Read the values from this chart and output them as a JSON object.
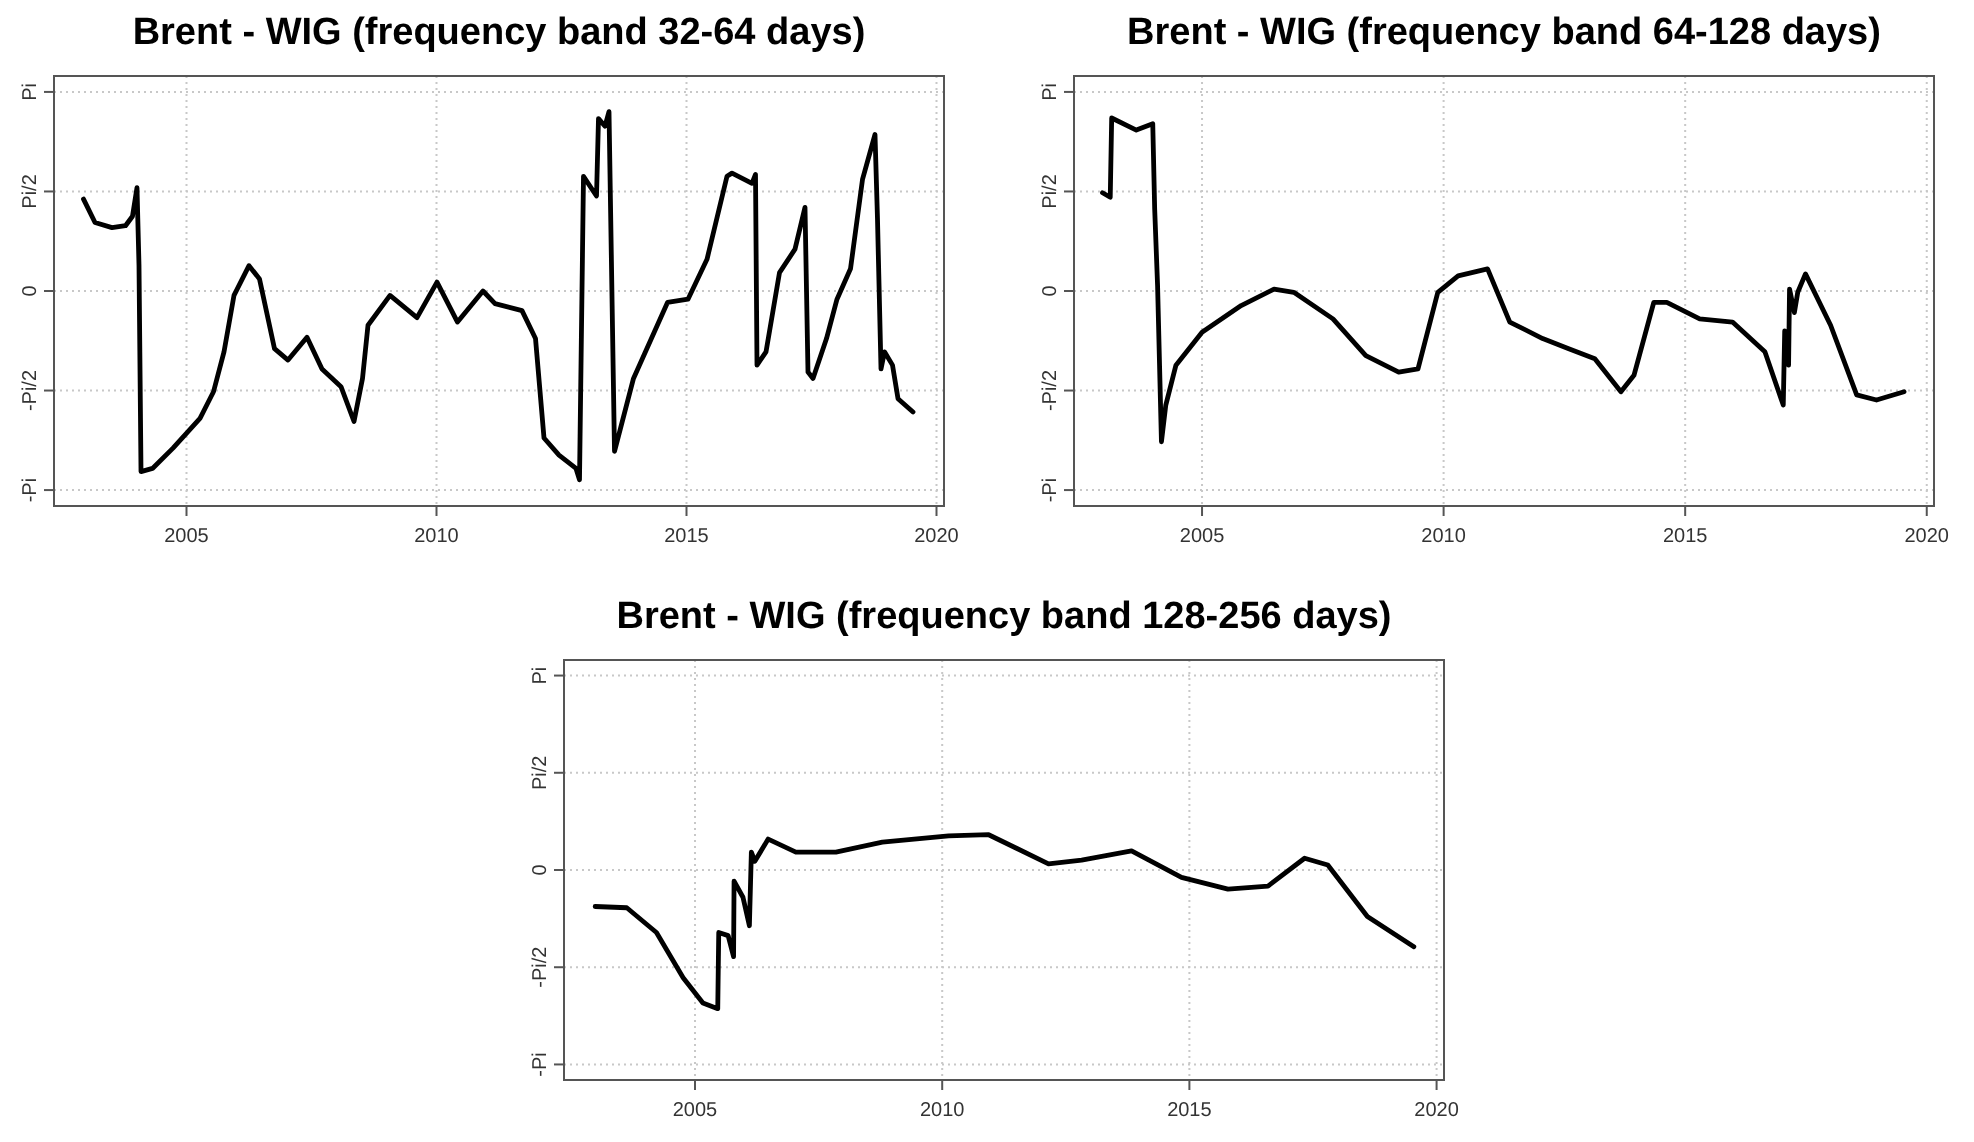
{
  "chart_data": [
    {
      "type": "line",
      "title": "Brent - WIG (frequency band 32-64 days)",
      "xlim": [
        2002.35,
        2020.15
      ],
      "xticks": [
        2005,
        2010,
        2015,
        2020
      ],
      "ylim": [
        -3.393,
        3.393
      ],
      "yticks": [
        {
          "value": -3.1416,
          "label": "-Pi"
        },
        {
          "value": -1.5708,
          "label": "-Pi/2"
        },
        {
          "value": 0,
          "label": "0"
        },
        {
          "value": 1.5708,
          "label": "Pi/2"
        },
        {
          "value": 3.1416,
          "label": "Pi"
        }
      ],
      "grid": true,
      "line_style": "solid",
      "marker": "none",
      "series": [
        {
          "color": "#000000",
          "x": [
            2002.94,
            2003.17,
            2003.51,
            2003.78,
            2003.92,
            2004.01,
            2004.05,
            2004.09,
            2004.32,
            2004.73,
            2005.27,
            2005.54,
            2005.75,
            2005.95,
            2006.25,
            2006.46,
            2006.76,
            2007.03,
            2007.41,
            2007.71,
            2008.09,
            2008.35,
            2008.52,
            2008.63,
            2009.07,
            2009.61,
            2010.01,
            2010.42,
            2010.93,
            2011.17,
            2011.71,
            2011.98,
            2012.15,
            2012.45,
            2012.79,
            2012.86,
            2012.94,
            2013.2,
            2013.24,
            2013.37,
            2013.45,
            2013.56,
            2013.94,
            2014.62,
            2015.03,
            2015.41,
            2015.81,
            2015.91,
            2016.31,
            2016.38,
            2016.41,
            2016.59,
            2016.86,
            2017.17,
            2017.37,
            2017.43,
            2017.53,
            2017.8,
            2018.01,
            2018.28,
            2018.52,
            2018.77,
            2018.82,
            2018.89,
            2018.96,
            2019.12,
            2019.23,
            2019.53
          ],
          "values": [
            1.45,
            1.08,
            1.0,
            1.03,
            1.18,
            1.63,
            0.4,
            -2.85,
            -2.8,
            -2.48,
            -2.01,
            -1.59,
            -0.96,
            -0.07,
            0.4,
            0.19,
            -0.91,
            -1.09,
            -0.73,
            -1.23,
            -1.51,
            -2.06,
            -1.38,
            -0.54,
            -0.07,
            -0.42,
            0.14,
            -0.49,
            0,
            -0.2,
            -0.31,
            -0.75,
            -2.32,
            -2.59,
            -2.8,
            -2.98,
            1.81,
            1.5,
            2.72,
            2.6,
            2.83,
            -2.53,
            -1.38,
            -0.18,
            -0.13,
            0.5,
            1.81,
            1.86,
            1.7,
            1.84,
            -1.17,
            -0.96,
            0.29,
            0.66,
            1.32,
            -1.28,
            -1.38,
            -0.75,
            -0.13,
            0.35,
            1.76,
            2.47,
            1.13,
            -1.23,
            -0.96,
            -1.17,
            -1.7,
            -1.91
          ]
        }
      ]
    },
    {
      "type": "line",
      "title": "Brent - WIG (frequency band 64-128 days)",
      "xlim": [
        2002.35,
        2020.15
      ],
      "xticks": [
        2005,
        2010,
        2015,
        2020
      ],
      "ylim": [
        -3.393,
        3.393
      ],
      "yticks": [
        {
          "value": -3.1416,
          "label": "-Pi"
        },
        {
          "value": -1.5708,
          "label": "-Pi/2"
        },
        {
          "value": 0,
          "label": "0"
        },
        {
          "value": 1.5708,
          "label": "Pi/2"
        },
        {
          "value": 3.1416,
          "label": "Pi"
        }
      ],
      "grid": true,
      "line_style": "solid",
      "marker": "none",
      "series": [
        {
          "color": "#000000",
          "x": [
            2002.94,
            2003.1,
            2003.13,
            2003.64,
            2003.98,
            2004.02,
            2004.08,
            2004.16,
            2004.25,
            2004.46,
            2005.0,
            2005.81,
            2006.49,
            2006.9,
            2007.71,
            2008.39,
            2009.07,
            2009.47,
            2009.88,
            2010.3,
            2010.91,
            2011.37,
            2012.05,
            2012.59,
            2013.13,
            2013.67,
            2013.94,
            2014.35,
            2014.62,
            2015.3,
            2015.98,
            2016.65,
            2017.03,
            2017.06,
            2017.14,
            2017.16,
            2017.26,
            2017.33,
            2017.49,
            2018.01,
            2018.55,
            2018.96,
            2019.53
          ],
          "values": [
            1.55,
            1.48,
            2.73,
            2.54,
            2.64,
            1.29,
            0.08,
            -2.38,
            -1.8,
            -1.17,
            -0.65,
            -0.23,
            0.03,
            -0.02,
            -0.44,
            -1.02,
            -1.28,
            -1.23,
            -0.02,
            0.24,
            0.35,
            -0.49,
            -0.75,
            -0.91,
            -1.07,
            -1.59,
            -1.33,
            -0.18,
            -0.18,
            -0.44,
            -0.49,
            -0.96,
            -1.8,
            -0.63,
            -1.17,
            0.03,
            -0.34,
            -0.02,
            0.27,
            -0.54,
            -1.64,
            -1.72,
            -1.59
          ]
        }
      ]
    },
    {
      "type": "line",
      "title": "Brent - WIG (frequency band 128-256 days)",
      "xlim": [
        2002.35,
        2020.15
      ],
      "xticks": [
        2005,
        2010,
        2015,
        2020
      ],
      "ylim": [
        -3.393,
        3.393
      ],
      "yticks": [
        {
          "value": -3.1416,
          "label": "-Pi"
        },
        {
          "value": -1.5708,
          "label": "-Pi/2"
        },
        {
          "value": 0,
          "label": "0"
        },
        {
          "value": 1.5708,
          "label": "Pi/2"
        },
        {
          "value": 3.1416,
          "label": "Pi"
        }
      ],
      "grid": true,
      "line_style": "solid",
      "marker": "none",
      "series": [
        {
          "color": "#000000",
          "x": [
            2002.98,
            2003.62,
            2004.22,
            2004.76,
            2005.16,
            2005.46,
            2005.48,
            2005.67,
            2005.78,
            2005.79,
            2005.97,
            2006.1,
            2006.14,
            2006.21,
            2006.48,
            2007.04,
            2007.85,
            2008.79,
            2010.13,
            2010.94,
            2012.15,
            2012.82,
            2013.83,
            2014.84,
            2015.78,
            2016.59,
            2017.33,
            2017.8,
            2018.6,
            2019.54
          ],
          "values": [
            -0.59,
            -0.61,
            -1.01,
            -1.74,
            -2.15,
            -2.24,
            -1.01,
            -1.06,
            -1.4,
            -0.18,
            -0.44,
            -0.9,
            0.29,
            0.14,
            0.5,
            0.29,
            0.29,
            0.45,
            0.55,
            0.57,
            0.1,
            0.16,
            0.31,
            -0.12,
            -0.31,
            -0.26,
            0.19,
            0.08,
            -0.75,
            -1.24
          ]
        }
      ]
    }
  ]
}
